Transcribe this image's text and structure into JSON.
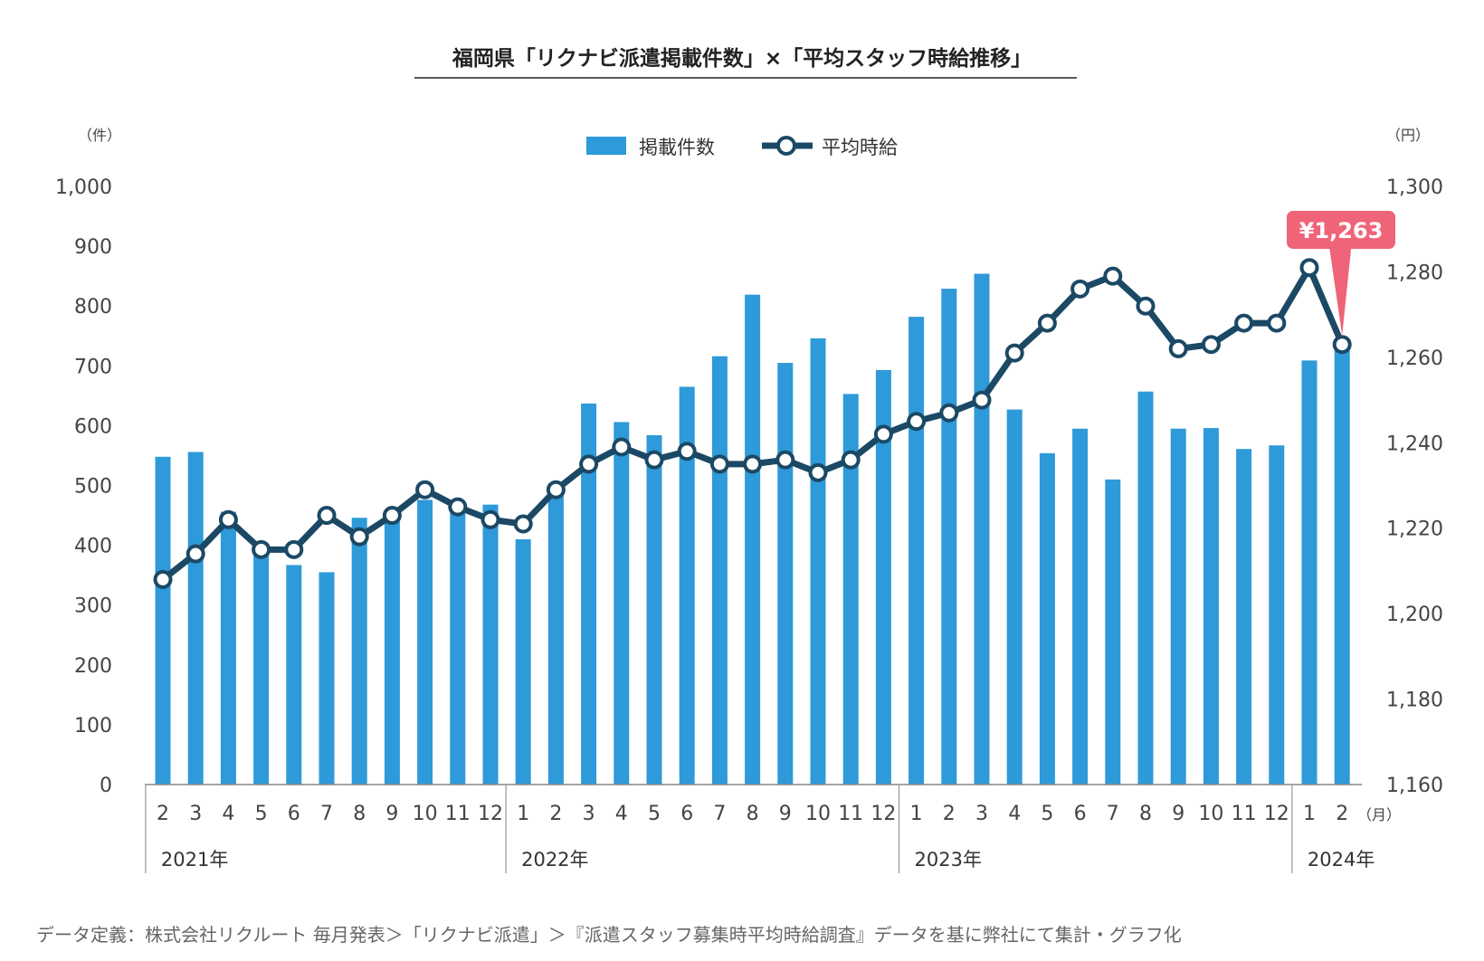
{
  "title": "福岡県「リクナビ派遣掲載件数」×「平均スタッフ時給推移」",
  "legend": {
    "bars": "掲載件数",
    "line": "平均時給"
  },
  "units": {
    "left": "（件）",
    "right": "（円）",
    "month": "（月）"
  },
  "callout": "¥1,263",
  "footnote": "データ定義：株式会社リクルート 毎月発表＞「リクナビ派遣」＞『派遣スタッフ募集時平均時給調査』データを基に弊社にて集計・グラフ化",
  "colors": {
    "bar": "#2e9ad9",
    "line": "#1b4965",
    "callout": "#ef6478",
    "axis": "#888888"
  },
  "chart_data": {
    "type": "bar+line",
    "title": "福岡県「リクナビ派遣掲載件数」×「平均スタッフ時給推移」",
    "left_axis": {
      "label": "（件）",
      "range": [
        0,
        1000
      ],
      "ticks": [
        "0",
        "100",
        "200",
        "300",
        "400",
        "500",
        "600",
        "700",
        "800",
        "900",
        "1,000"
      ]
    },
    "right_axis": {
      "label": "（円）",
      "range": [
        1160,
        1300
      ],
      "ticks": [
        "1,160",
        "1,180",
        "1,200",
        "1,220",
        "1,240",
        "1,260",
        "1,280",
        "1,300"
      ]
    },
    "x_month_labels": [
      "2",
      "3",
      "4",
      "5",
      "6",
      "7",
      "8",
      "9",
      "10",
      "11",
      "12",
      "1",
      "2",
      "3",
      "4",
      "5",
      "6",
      "7",
      "8",
      "9",
      "10",
      "11",
      "12",
      "1",
      "2",
      "3",
      "4",
      "5",
      "6",
      "7",
      "8",
      "9",
      "10",
      "11",
      "12",
      "1",
      "2"
    ],
    "years": [
      {
        "label": "2021年",
        "start": 0,
        "end": 10
      },
      {
        "label": "2022年",
        "start": 11,
        "end": 22
      },
      {
        "label": "2023年",
        "start": 23,
        "end": 34
      },
      {
        "label": "2024年",
        "start": 35,
        "end": 36
      }
    ],
    "series": [
      {
        "name": "掲載件数",
        "axis": "left",
        "type": "bar",
        "values": [
          548,
          556,
          456,
          397,
          367,
          355,
          446,
          444,
          476,
          460,
          468,
          410,
          488,
          637,
          606,
          584,
          665,
          716,
          819,
          705,
          746,
          653,
          693,
          782,
          829,
          854,
          627,
          554,
          595,
          510,
          657,
          595,
          596,
          561,
          567,
          709,
          729
        ]
      },
      {
        "name": "平均時給",
        "axis": "right",
        "type": "line",
        "values": [
          1208,
          1214,
          1222,
          1215,
          1215,
          1223,
          1218,
          1223,
          1229,
          1225,
          1222,
          1221,
          1229,
          1235,
          1239,
          1236,
          1238,
          1235,
          1235,
          1236,
          1233,
          1236,
          1242,
          1245,
          1247,
          1250,
          1261,
          1268,
          1276,
          1279,
          1272,
          1262,
          1263,
          1268,
          1268,
          1281,
          1263
        ]
      }
    ],
    "grid": false,
    "legend_position": "top-center"
  }
}
